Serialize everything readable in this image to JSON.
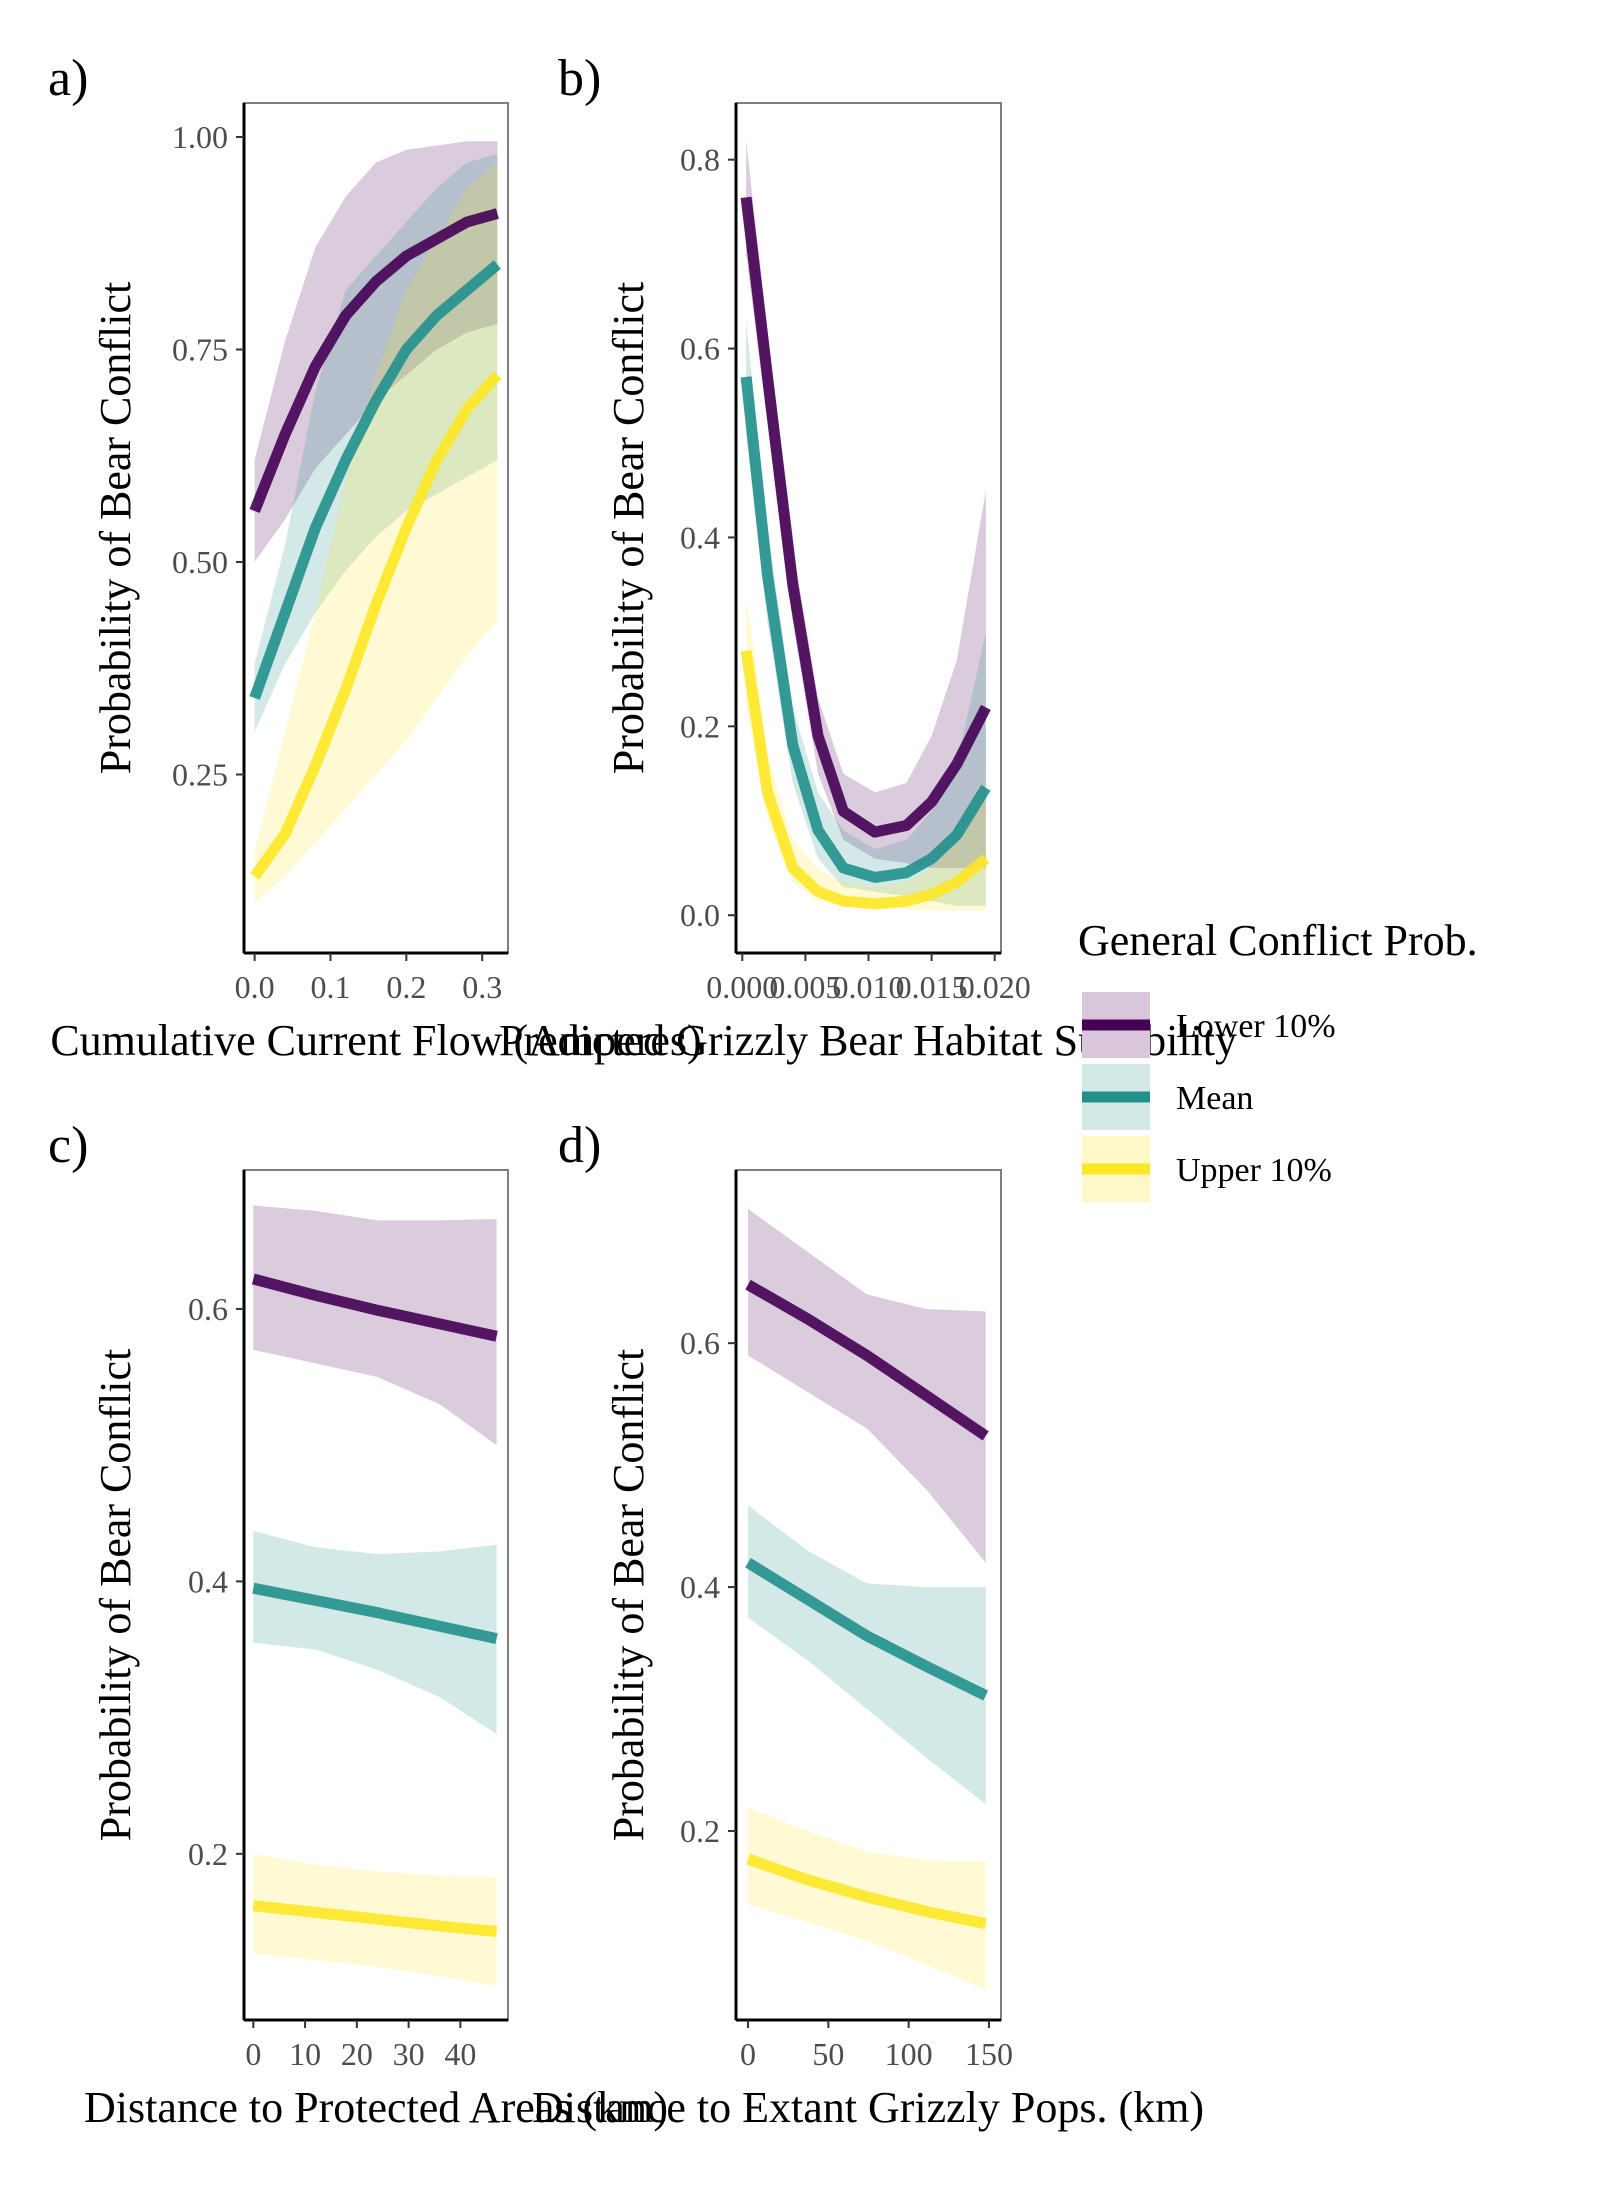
{
  "legend": {
    "title": "General Conflict Prob.",
    "items": [
      {
        "label": "Lower 10%",
        "color": "#440154",
        "fill": "#d9c6db"
      },
      {
        "label": "Mean",
        "color": "#21908c",
        "fill": "#d2e9e8"
      },
      {
        "label": "Upper 10%",
        "color": "#fde725",
        "fill": "#fef8c8"
      }
    ]
  },
  "chart_data": [
    {
      "type": "line",
      "panel": "a)",
      "xlabel": "Cumulative Current Flow (Amperes)",
      "ylabel": "Probability of Bear Conflict",
      "xlim": [
        -0.014,
        0.334
      ],
      "ylim": [
        0.04,
        1.04
      ],
      "xticks": [
        0.0,
        0.1,
        0.2,
        0.3
      ],
      "xtick_labels": [
        "0.0",
        "0.1",
        "0.2",
        "0.3"
      ],
      "yticks": [
        0.25,
        0.5,
        0.75,
        1.0
      ],
      "ytick_labels": [
        "0.25",
        "0.50",
        "0.75",
        "1.00"
      ],
      "series": [
        {
          "name": "Lower 10%",
          "x": [
            0.0,
            0.04,
            0.08,
            0.12,
            0.16,
            0.2,
            0.24,
            0.28,
            0.32
          ],
          "y": [
            0.56,
            0.65,
            0.73,
            0.79,
            0.83,
            0.86,
            0.88,
            0.9,
            0.91
          ],
          "lower": [
            0.5,
            0.55,
            0.61,
            0.65,
            0.69,
            0.72,
            0.75,
            0.77,
            0.78
          ],
          "upper": [
            0.62,
            0.76,
            0.87,
            0.93,
            0.97,
            0.985,
            0.99,
            0.995,
            0.995
          ]
        },
        {
          "name": "Mean",
          "x": [
            0.0,
            0.04,
            0.08,
            0.12,
            0.16,
            0.2,
            0.24,
            0.28,
            0.32
          ],
          "y": [
            0.34,
            0.44,
            0.54,
            0.62,
            0.69,
            0.75,
            0.79,
            0.82,
            0.85
          ],
          "lower": [
            0.3,
            0.38,
            0.44,
            0.49,
            0.53,
            0.56,
            0.58,
            0.6,
            0.62
          ],
          "upper": [
            0.38,
            0.52,
            0.7,
            0.82,
            0.86,
            0.9,
            0.94,
            0.97,
            0.98
          ]
        },
        {
          "name": "Upper 10%",
          "x": [
            0.0,
            0.04,
            0.08,
            0.12,
            0.16,
            0.2,
            0.24,
            0.28,
            0.32
          ],
          "y": [
            0.13,
            0.18,
            0.26,
            0.35,
            0.45,
            0.54,
            0.62,
            0.68,
            0.72
          ],
          "lower": [
            0.1,
            0.13,
            0.17,
            0.21,
            0.25,
            0.29,
            0.34,
            0.39,
            0.43
          ],
          "upper": [
            0.16,
            0.3,
            0.44,
            0.6,
            0.72,
            0.82,
            0.88,
            0.94,
            0.97
          ]
        }
      ]
    },
    {
      "type": "line",
      "panel": "b)",
      "xlabel": "Predicted Grizzly Bear Habitat Suitability",
      "ylabel": "Probability of Bear Conflict",
      "xlim": [
        -0.0005,
        0.0205
      ],
      "ylim": [
        -0.04,
        0.86
      ],
      "xticks": [
        0.0,
        0.005,
        0.01,
        0.015,
        0.02
      ],
      "xtick_labels": [
        "0.000",
        "0.005",
        "0.010",
        "0.015",
        "0.020"
      ],
      "yticks": [
        0.0,
        0.2,
        0.4,
        0.6,
        0.8
      ],
      "ytick_labels": [
        "0.0",
        "0.2",
        "0.4",
        "0.6",
        "0.8"
      ],
      "series": [
        {
          "name": "Lower 10%",
          "x": [
            0.0003,
            0.002,
            0.004,
            0.006,
            0.008,
            0.0105,
            0.013,
            0.015,
            0.017,
            0.0193
          ],
          "y": [
            0.76,
            0.57,
            0.35,
            0.19,
            0.11,
            0.088,
            0.095,
            0.12,
            0.16,
            0.22
          ],
          "lower": [
            0.7,
            0.52,
            0.31,
            0.15,
            0.08,
            0.06,
            0.055,
            0.05,
            0.05,
            0.05
          ],
          "upper": [
            0.82,
            0.62,
            0.39,
            0.23,
            0.15,
            0.13,
            0.14,
            0.19,
            0.27,
            0.45
          ]
        },
        {
          "name": "Mean",
          "x": [
            0.0003,
            0.002,
            0.004,
            0.006,
            0.008,
            0.0105,
            0.013,
            0.015,
            0.017,
            0.0193
          ],
          "y": [
            0.57,
            0.36,
            0.18,
            0.09,
            0.05,
            0.04,
            0.045,
            0.06,
            0.085,
            0.135
          ],
          "lower": [
            0.51,
            0.31,
            0.14,
            0.06,
            0.03,
            0.025,
            0.02,
            0.015,
            0.01,
            0.01
          ],
          "upper": [
            0.63,
            0.41,
            0.22,
            0.13,
            0.09,
            0.07,
            0.08,
            0.11,
            0.16,
            0.3
          ]
        },
        {
          "name": "Upper 10%",
          "x": [
            0.0003,
            0.002,
            0.004,
            0.006,
            0.008,
            0.0105,
            0.013,
            0.015,
            0.017,
            0.0193
          ],
          "y": [
            0.28,
            0.13,
            0.05,
            0.025,
            0.015,
            0.012,
            0.015,
            0.022,
            0.035,
            0.06
          ],
          "lower": [
            0.22,
            0.1,
            0.035,
            0.015,
            0.01,
            0.008,
            0.006,
            0.005,
            0.005,
            0.005
          ],
          "upper": [
            0.34,
            0.17,
            0.08,
            0.05,
            0.035,
            0.03,
            0.035,
            0.05,
            0.08,
            0.14
          ]
        }
      ]
    },
    {
      "type": "line",
      "panel": "c)",
      "xlabel": "Distance to Protected Areas (km)",
      "ylabel": "Probability of Bear Conflict",
      "xlim": [
        -1.8,
        49.2
      ],
      "ylim": [
        0.078,
        0.702
      ],
      "xticks": [
        0,
        10,
        20,
        30,
        40
      ],
      "xtick_labels": [
        "0",
        "10",
        "20",
        "30",
        "40"
      ],
      "yticks": [
        0.2,
        0.4,
        0.6
      ],
      "ytick_labels": [
        "0.2",
        "0.4",
        "0.6"
      ],
      "series": [
        {
          "name": "Lower 10%",
          "x": [
            0,
            12,
            24,
            36,
            47
          ],
          "y": [
            0.622,
            0.61,
            0.599,
            0.589,
            0.58
          ],
          "lower": [
            0.57,
            0.56,
            0.55,
            0.53,
            0.5
          ],
          "upper": [
            0.676,
            0.672,
            0.665,
            0.665,
            0.666
          ]
        },
        {
          "name": "Mean",
          "x": [
            0,
            12,
            24,
            36,
            47
          ],
          "y": [
            0.395,
            0.386,
            0.377,
            0.367,
            0.358
          ],
          "lower": [
            0.355,
            0.35,
            0.335,
            0.315,
            0.288
          ],
          "upper": [
            0.437,
            0.425,
            0.42,
            0.422,
            0.427
          ]
        },
        {
          "name": "Upper 10%",
          "x": [
            0,
            12,
            24,
            36,
            47
          ],
          "y": [
            0.162,
            0.157,
            0.152,
            0.147,
            0.143
          ],
          "lower": [
            0.127,
            0.122,
            0.117,
            0.11,
            0.103
          ],
          "upper": [
            0.2,
            0.192,
            0.187,
            0.184,
            0.183
          ]
        }
      ]
    },
    {
      "type": "line",
      "panel": "d)",
      "xlabel": "Distance to Extant Grizzly Pops. (km)",
      "ylabel": "Probability of Bear Conflict",
      "xlim": [
        -7.5,
        157.5
      ],
      "ylim": [
        0.045,
        0.742
      ],
      "xticks": [
        0,
        50,
        100,
        150
      ],
      "xtick_labels": [
        "0",
        "50",
        "100",
        "150"
      ],
      "yticks": [
        0.2,
        0.4,
        0.6
      ],
      "ytick_labels": [
        "0.2",
        "0.4",
        "0.6"
      ],
      "series": [
        {
          "name": "Lower 10%",
          "x": [
            0,
            37,
            74,
            111,
            148
          ],
          "y": [
            0.648,
            0.62,
            0.59,
            0.557,
            0.524
          ],
          "lower": [
            0.59,
            0.56,
            0.53,
            0.48,
            0.42
          ],
          "upper": [
            0.71,
            0.675,
            0.64,
            0.628,
            0.626
          ]
        },
        {
          "name": "Mean",
          "x": [
            0,
            37,
            74,
            111,
            148
          ],
          "y": [
            0.42,
            0.39,
            0.36,
            0.335,
            0.311
          ],
          "lower": [
            0.375,
            0.34,
            0.3,
            0.26,
            0.222
          ],
          "upper": [
            0.467,
            0.43,
            0.403,
            0.4,
            0.4
          ]
        },
        {
          "name": "Upper 10%",
          "x": [
            0,
            37,
            74,
            111,
            148
          ],
          "y": [
            0.177,
            0.16,
            0.146,
            0.134,
            0.124
          ],
          "lower": [
            0.14,
            0.125,
            0.11,
            0.09,
            0.07
          ],
          "upper": [
            0.219,
            0.2,
            0.183,
            0.176,
            0.175
          ]
        }
      ]
    }
  ]
}
